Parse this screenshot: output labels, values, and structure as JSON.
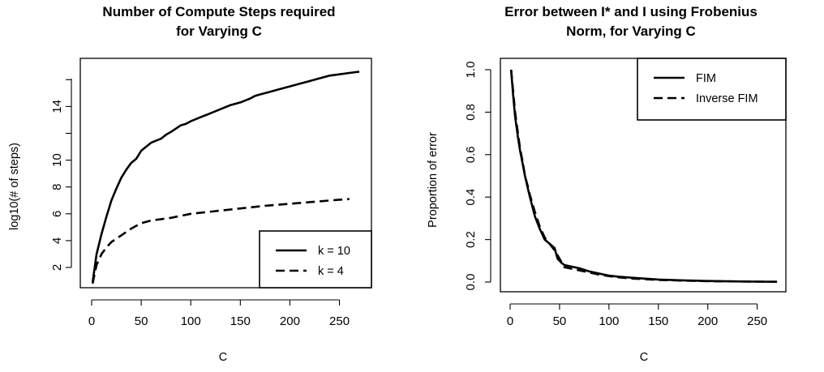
{
  "chart_data": [
    {
      "type": "line",
      "title_lines": [
        "Number of Compute Steps required",
        "for Varying C"
      ],
      "xlabel": "C",
      "ylabel": "log10(# of steps)",
      "xlim": [
        0,
        270
      ],
      "ylim": [
        0.8,
        16.5
      ],
      "xticks": [
        0,
        50,
        100,
        150,
        200,
        250
      ],
      "yticks": [
        2,
        4,
        6,
        8,
        10,
        14
      ],
      "grid": false,
      "legend_position": "bottom-right",
      "series": [
        {
          "name": "k = 10",
          "line_style": "solid",
          "x": [
            1,
            5,
            10,
            15,
            20,
            25,
            30,
            35,
            40,
            45,
            50,
            55,
            60,
            70,
            75,
            80,
            90,
            95,
            100,
            110,
            120,
            130,
            140,
            150,
            160,
            165,
            170,
            180,
            190,
            200,
            210,
            220,
            230,
            235,
            240,
            250,
            260,
            270
          ],
          "y": [
            0.9,
            3.0,
            4.5,
            5.8,
            7.0,
            7.9,
            8.7,
            9.3,
            9.8,
            10.1,
            10.7,
            11.0,
            11.3,
            11.6,
            11.9,
            12.1,
            12.6,
            12.7,
            12.9,
            13.2,
            13.5,
            13.8,
            14.1,
            14.3,
            14.6,
            14.8,
            14.9,
            15.1,
            15.3,
            15.5,
            15.7,
            15.9,
            16.1,
            16.2,
            16.3,
            16.4,
            16.5,
            16.6
          ]
        },
        {
          "name": "k = 4",
          "line_style": "dashed",
          "x": [
            1,
            5,
            10,
            15,
            20,
            30,
            40,
            50,
            60,
            80,
            100,
            125,
            150,
            175,
            200,
            225,
            250,
            260
          ],
          "y": [
            0.8,
            2.2,
            3.0,
            3.5,
            3.9,
            4.4,
            4.9,
            5.3,
            5.5,
            5.7,
            6.0,
            6.2,
            6.4,
            6.6,
            6.75,
            6.9,
            7.05,
            7.1
          ]
        }
      ]
    },
    {
      "type": "line",
      "title_lines": [
        "Error between I* and I using Frobenius",
        "Norm, for Varying C"
      ],
      "xlabel": "C",
      "ylabel": "Proportion of error",
      "xlim": [
        0,
        270
      ],
      "ylim": [
        0,
        1
      ],
      "xticks": [
        0,
        50,
        100,
        150,
        200,
        250
      ],
      "yticks": [
        0.0,
        0.2,
        0.4,
        0.6,
        0.8,
        1.0
      ],
      "ytick_labels": [
        "0.0",
        "0.2",
        "0.4",
        "0.6",
        "0.8",
        "1.0"
      ],
      "grid": false,
      "legend_position": "top-right",
      "series": [
        {
          "name": "FIM",
          "line_style": "solid",
          "x": [
            1,
            3,
            5,
            8,
            10,
            13,
            15,
            18,
            20,
            25,
            30,
            35,
            40,
            45,
            48,
            52,
            55,
            60,
            70,
            80,
            90,
            100,
            110,
            125,
            150,
            175,
            200,
            225,
            250,
            270
          ],
          "y": [
            1.0,
            0.88,
            0.78,
            0.68,
            0.62,
            0.55,
            0.5,
            0.44,
            0.4,
            0.31,
            0.25,
            0.2,
            0.18,
            0.16,
            0.11,
            0.09,
            0.08,
            0.075,
            0.065,
            0.05,
            0.04,
            0.03,
            0.025,
            0.02,
            0.012,
            0.008,
            0.005,
            0.003,
            0.002,
            0.001
          ]
        },
        {
          "name": "Inverse FIM",
          "line_style": "dashed",
          "x": [
            1,
            3,
            5,
            8,
            10,
            13,
            15,
            18,
            20,
            25,
            30,
            35,
            40,
            45,
            50,
            55,
            60,
            70,
            80,
            90,
            100,
            110,
            125,
            150,
            175,
            200,
            225,
            250,
            270
          ],
          "y": [
            1.0,
            0.9,
            0.8,
            0.7,
            0.63,
            0.56,
            0.5,
            0.45,
            0.41,
            0.33,
            0.26,
            0.21,
            0.18,
            0.15,
            0.11,
            0.07,
            0.065,
            0.055,
            0.045,
            0.035,
            0.028,
            0.022,
            0.016,
            0.01,
            0.007,
            0.004,
            0.003,
            0.002,
            0.001
          ]
        }
      ]
    }
  ]
}
